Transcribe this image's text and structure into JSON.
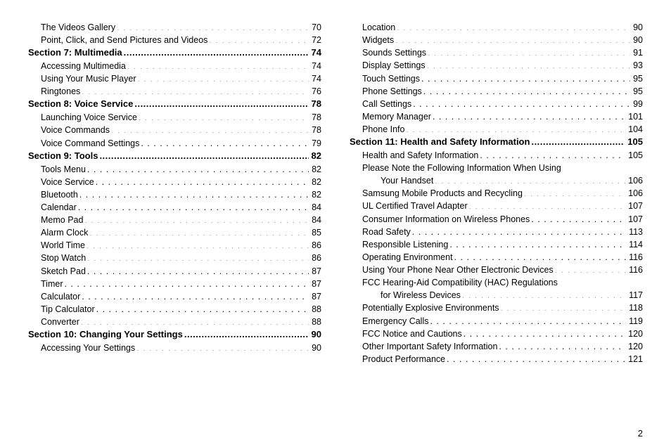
{
  "pageNumber": "2",
  "columns": {
    "left": [
      {
        "type": "sub",
        "label": "The Videos Gallery",
        "page": "70"
      },
      {
        "type": "sub",
        "label": "Point, Click, and Send Pictures and Videos",
        "page": "72"
      },
      {
        "type": "section",
        "label": "Section 7:  Multimedia",
        "page": "74"
      },
      {
        "type": "sub",
        "label": "Accessing Multimedia",
        "page": "74"
      },
      {
        "type": "sub",
        "label": "Using Your Music Player",
        "page": "74"
      },
      {
        "type": "sub",
        "label": "Ringtones",
        "page": "76"
      },
      {
        "type": "section",
        "label": "Section 8:  Voice Service",
        "page": "78"
      },
      {
        "type": "sub",
        "label": "Launching Voice Service",
        "page": "78"
      },
      {
        "type": "sub",
        "label": "Voice Commands",
        "page": "78"
      },
      {
        "type": "sub",
        "label": "Voice Command Settings",
        "page": "79"
      },
      {
        "type": "section",
        "label": "Section 9:  Tools",
        "page": "82"
      },
      {
        "type": "sub",
        "label": "Tools Menu",
        "page": "82"
      },
      {
        "type": "sub",
        "label": "Voice Service",
        "page": "82"
      },
      {
        "type": "sub",
        "label": "Bluetooth",
        "page": "82"
      },
      {
        "type": "sub",
        "label": "Calendar",
        "page": "84"
      },
      {
        "type": "sub",
        "label": "Memo Pad",
        "page": "84"
      },
      {
        "type": "sub",
        "label": "Alarm Clock",
        "page": "85"
      },
      {
        "type": "sub",
        "label": "World Time",
        "page": "86"
      },
      {
        "type": "sub",
        "label": "Stop Watch",
        "page": "86"
      },
      {
        "type": "sub",
        "label": "Sketch Pad",
        "page": "87"
      },
      {
        "type": "sub",
        "label": "Timer",
        "page": "87"
      },
      {
        "type": "sub",
        "label": "Calculator",
        "page": "87"
      },
      {
        "type": "sub",
        "label": "Tip Calculator",
        "page": "88"
      },
      {
        "type": "sub",
        "label": "Converter",
        "page": "88"
      },
      {
        "type": "section",
        "label": "Section 10:  Changing Your Settings",
        "page": "90"
      },
      {
        "type": "sub",
        "label": "Accessing Your Settings",
        "page": "90"
      }
    ],
    "right": [
      {
        "type": "sub",
        "label": "Location",
        "page": "90"
      },
      {
        "type": "sub",
        "label": "Widgets",
        "page": "90"
      },
      {
        "type": "sub",
        "label": "Sounds Settings",
        "page": "91"
      },
      {
        "type": "sub",
        "label": "Display Settings",
        "page": "93"
      },
      {
        "type": "sub",
        "label": "Touch Settings",
        "page": "95"
      },
      {
        "type": "sub",
        "label": "Phone Settings",
        "page": "95"
      },
      {
        "type": "sub",
        "label": "Call Settings",
        "page": "99"
      },
      {
        "type": "sub",
        "label": "Memory Manager",
        "page": "101"
      },
      {
        "type": "sub",
        "label": "Phone Info",
        "page": "104"
      },
      {
        "type": "section",
        "label": "Section 11:  Health and Safety Information",
        "page": "105"
      },
      {
        "type": "sub",
        "label": "Health and Safety Information",
        "page": "105"
      },
      {
        "type": "sub-nodots",
        "label": "Please Note the Following Information When Using"
      },
      {
        "type": "sub2",
        "label": "Your Handset",
        "page": "106"
      },
      {
        "type": "sub",
        "label": "Samsung Mobile Products and Recycling",
        "page": "106"
      },
      {
        "type": "sub",
        "label": "UL Certified Travel Adapter",
        "page": "107"
      },
      {
        "type": "sub",
        "label": "Consumer Information on Wireless Phones",
        "page": "107"
      },
      {
        "type": "sub",
        "label": "Road Safety",
        "page": "113"
      },
      {
        "type": "sub",
        "label": "Responsible Listening",
        "page": "114"
      },
      {
        "type": "sub",
        "label": "Operating Environment",
        "page": "116"
      },
      {
        "type": "sub",
        "label": "Using Your Phone Near Other Electronic Devices",
        "page": "116"
      },
      {
        "type": "sub-nodots",
        "label": "FCC Hearing-Aid Compatibility (HAC) Regulations"
      },
      {
        "type": "sub2",
        "label": "for Wireless Devices",
        "page": "117"
      },
      {
        "type": "sub",
        "label": "Potentially Explosive Environments",
        "page": "118"
      },
      {
        "type": "sub",
        "label": "Emergency Calls",
        "page": "119"
      },
      {
        "type": "sub",
        "label": "FCC Notice and Cautions",
        "page": "120"
      },
      {
        "type": "sub",
        "label": "Other Important Safety Information",
        "page": "120"
      },
      {
        "type": "sub",
        "label": "Product Performance",
        "page": "121"
      }
    ]
  }
}
